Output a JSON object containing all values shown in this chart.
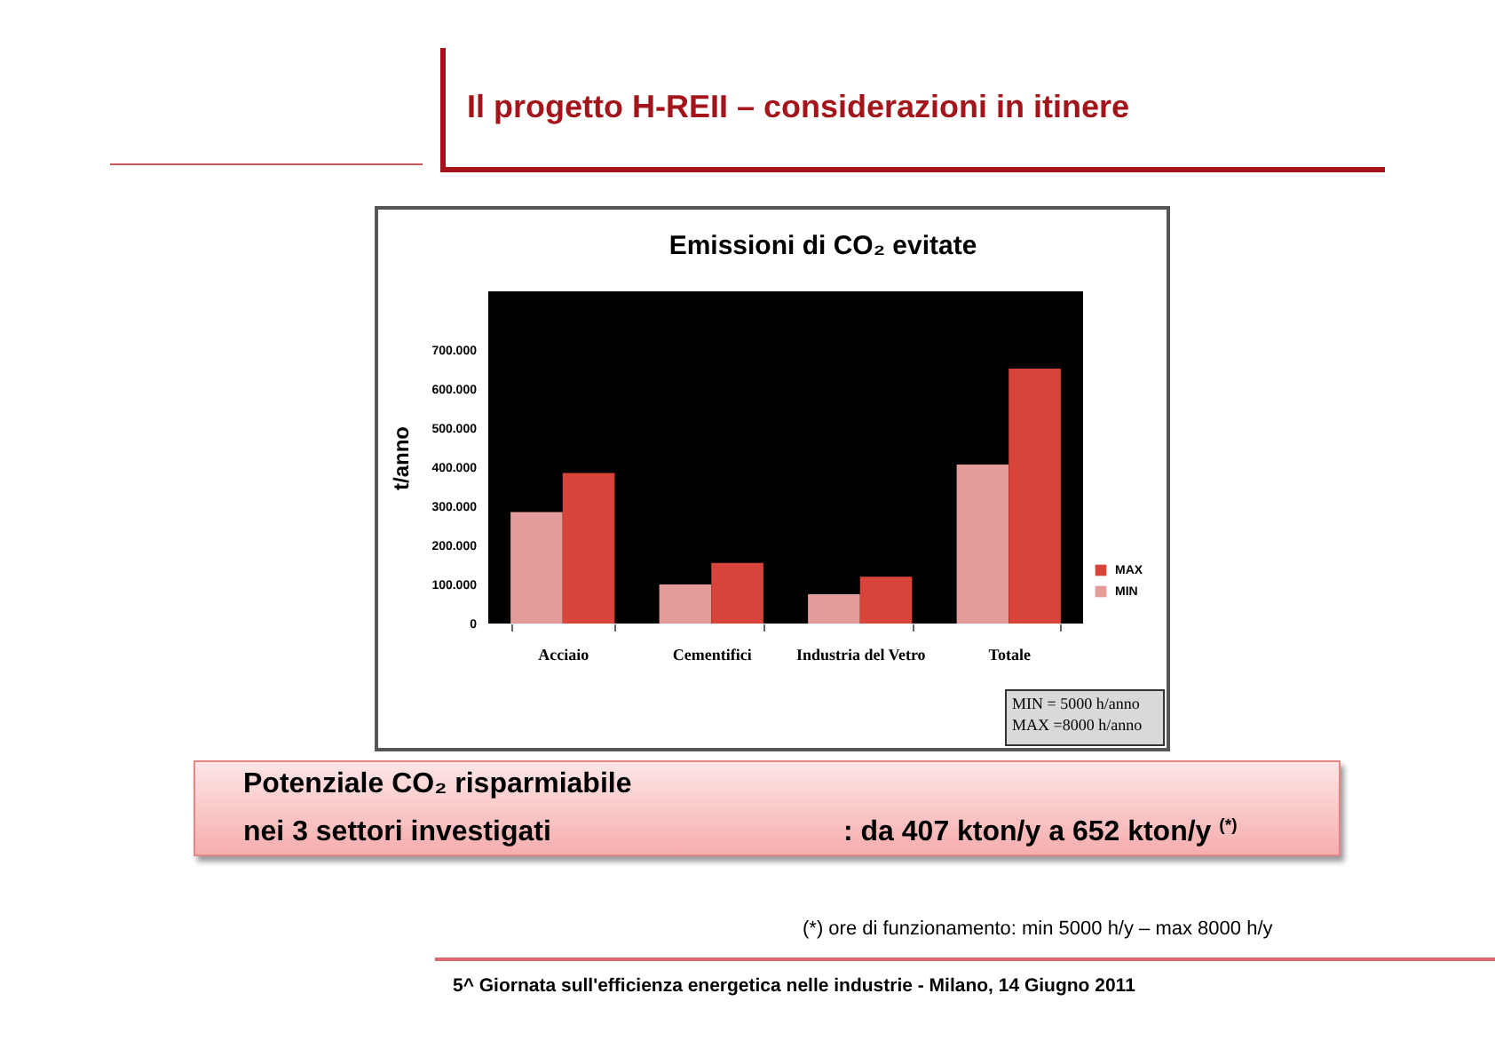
{
  "chart_data": {
    "type": "bar",
    "title": "Emissioni di CO₂ evitate",
    "ylabel": "t/anno",
    "categories": [
      "Acciaio",
      "Cementifici",
      "Industria del Vetro",
      "Totale"
    ],
    "series": [
      {
        "name": "MIN",
        "color": "#e39c9a",
        "values": [
          285000,
          100000,
          75000,
          407000
        ]
      },
      {
        "name": "MAX",
        "color": "#d8433a",
        "values": [
          385000,
          155000,
          120000,
          652000
        ]
      }
    ],
    "ylim": [
      0,
      850000
    ],
    "yticks": [
      0,
      {
        "value": 100000,
        "label": "100.000"
      },
      {
        "value": 200000,
        "label": "200.000"
      },
      {
        "value": 300000,
        "label": "300.000"
      },
      {
        "value": 400000,
        "label": "400.000"
      },
      {
        "value": 500000,
        "label": "500.000"
      },
      {
        "value": 600000,
        "label": "600.000"
      },
      {
        "value": 700000,
        "label": "700.000"
      }
    ],
    "legend": "bottom right",
    "annotations": [
      "Il progetto H-REII – considerazioni in itinere",
      "MIN = 5000 h/anno",
      "MAX =8000 h/anno",
      "Potenziale CO₂ risparmiabile",
      "nei 3 settori investigati",
      ": da 407 kton/y a 652 kton/y $^{(*)}$",
      "(*) ore di funzionamento: min 5000 h/y – max 8000 h/y",
      "5^ Giornata sull'efficienza energetica nelle industrie - Milano, 14 Giugno 2011"
    ]
  }
}
